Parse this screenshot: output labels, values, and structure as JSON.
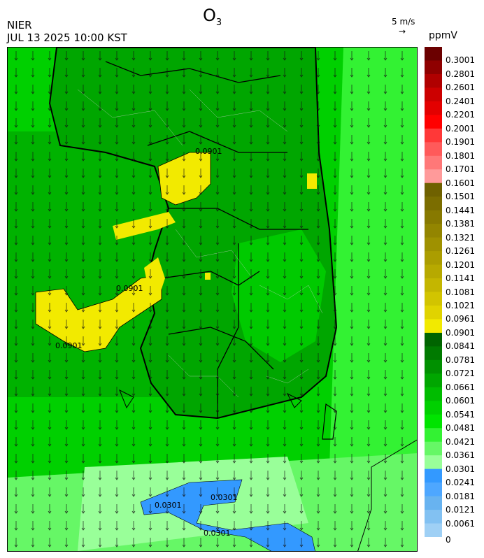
{
  "header": {
    "title_main": "O",
    "title_sub": "3",
    "org": "NIER",
    "datetime": "JUL 13 2025 10:00 KST",
    "wind_ref": "5 m/s",
    "wind_arrow": "→",
    "unit": "ppmV"
  },
  "legend": {
    "labels": [
      "0.3001",
      "0.2801",
      "0.2601",
      "0.2401",
      "0.2201",
      "0.2001",
      "0.1901",
      "0.1801",
      "0.1701",
      "0.1601",
      "0.1501",
      "0.1441",
      "0.1381",
      "0.1321",
      "0.1261",
      "0.1201",
      "0.1141",
      "0.1081",
      "0.1021",
      "0.0961",
      "0.0901",
      "0.0841",
      "0.0781",
      "0.0721",
      "0.0661",
      "0.0601",
      "0.0541",
      "0.0481",
      "0.0421",
      "0.0361",
      "0.0301",
      "0.0241",
      "0.0181",
      "0.0121",
      "0.0061",
      "0"
    ],
    "colors": [
      "#6b0000",
      "#8f0000",
      "#b00000",
      "#cc0000",
      "#e30000",
      "#ff0000",
      "#ff3838",
      "#ff5a5a",
      "#ff7878",
      "#ff9a9a",
      "#6f6100",
      "#7b6d00",
      "#877900",
      "#938500",
      "#9f9100",
      "#ab9d00",
      "#b7a900",
      "#c4b600",
      "#d2c400",
      "#e0d300",
      "#f2ea00",
      "#006400",
      "#007a00",
      "#009000",
      "#00a600",
      "#00bc00",
      "#00d000",
      "#00e400",
      "#33f233",
      "#66f766",
      "#99ff99",
      "#3399ff",
      "#4ea7ff",
      "#68b3f0",
      "#82c1f2",
      "#9fd0f5"
    ]
  },
  "map": {
    "contour_labels": [
      "0.0901",
      "0.0901",
      "0.0901",
      "0.0301",
      "0.0301",
      "0.0301"
    ]
  }
}
